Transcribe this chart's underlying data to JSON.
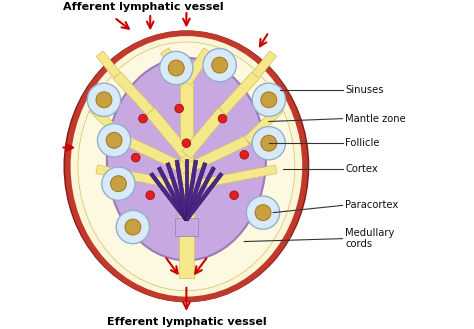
{
  "bg_color": "#ffffff",
  "title_afferent": "Afferent lymphatic vessel",
  "title_efferent": "Efferent lymphatic vessel",
  "labels": [
    "Sinuses",
    "Mantle zone",
    "Follicle",
    "Cortex",
    "Paracortex",
    "Medullary\ncords"
  ],
  "outer_fc": "#fdf5d8",
  "outer_ec": "#8b1a1a",
  "capsule_ec": "#c0392b",
  "sinus_fc": "#f5e88a",
  "sinus_ec": "#d4c060",
  "paracortex_fc": "#c8a8e0",
  "paracortex_ec": "#9b7ab8",
  "medulla_fc": "#5030a0",
  "follicle_outer_fc": "#d8eaf8",
  "follicle_outer_ec": "#90b0d0",
  "follicle_inner_fc": "#c8a040",
  "follicle_inner_ec": "#a07820",
  "red_dot_fc": "#dd2020",
  "arrow_color": "#cc0000",
  "label_color": "#111111",
  "line_color": "#333333"
}
